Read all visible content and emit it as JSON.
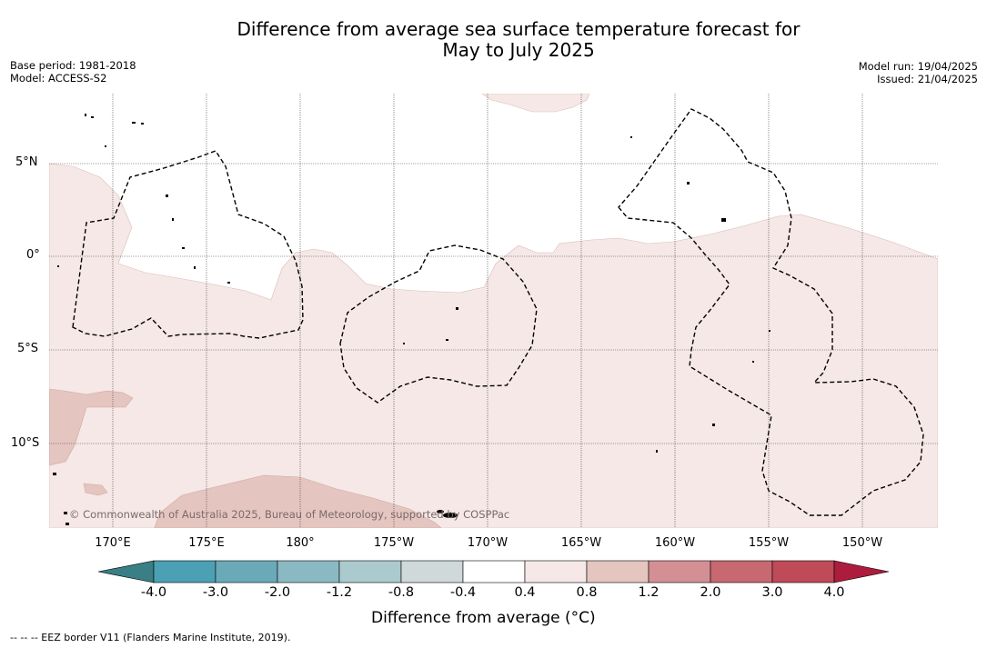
{
  "title_line1": "Difference from average sea surface temperature forecast for",
  "title_line2": "May to July 2025",
  "base_period": "Base period: 1981-2018",
  "model": "Model: ACCESS-S2",
  "model_run": "Model run: 19/04/2025",
  "issued": "Issued: 21/04/2025",
  "lat_labels": [
    "5°N",
    "0°",
    "5°S",
    "10°S"
  ],
  "lon_labels": [
    "170°E",
    "175°E",
    "180°",
    "175°W",
    "170°W",
    "165°W",
    "160°W",
    "155°W",
    "150°W"
  ],
  "copyright": "© Commonwealth of Australia 2025, Bureau of Meteorology, supported by COSPPac",
  "colorbar": {
    "ticks": [
      "-4.0",
      "-3.0",
      "-2.0",
      "-1.2",
      "-0.8",
      "-0.4",
      "0.4",
      "0.8",
      "1.2",
      "2.0",
      "3.0",
      "4.0"
    ],
    "colors": {
      "below_min": "#3a7f85",
      "bins": [
        "#4ba1b3",
        "#6aaab8",
        "#8ab9c3",
        "#aacacd",
        "#cfd9da",
        "#ffffff",
        "#f5e8e6",
        "#e5c5c0",
        "#d48f95",
        "#c86870",
        "#bf4a58"
      ],
      "above_max": "#ad1c3c"
    },
    "label": "Difference from average ($^\\circ$C)",
    "label_display": "Difference from average (°C)"
  },
  "eez_note": "--  --  -- EEZ border V11 (Flanders Marine Institute, 2019)."
}
